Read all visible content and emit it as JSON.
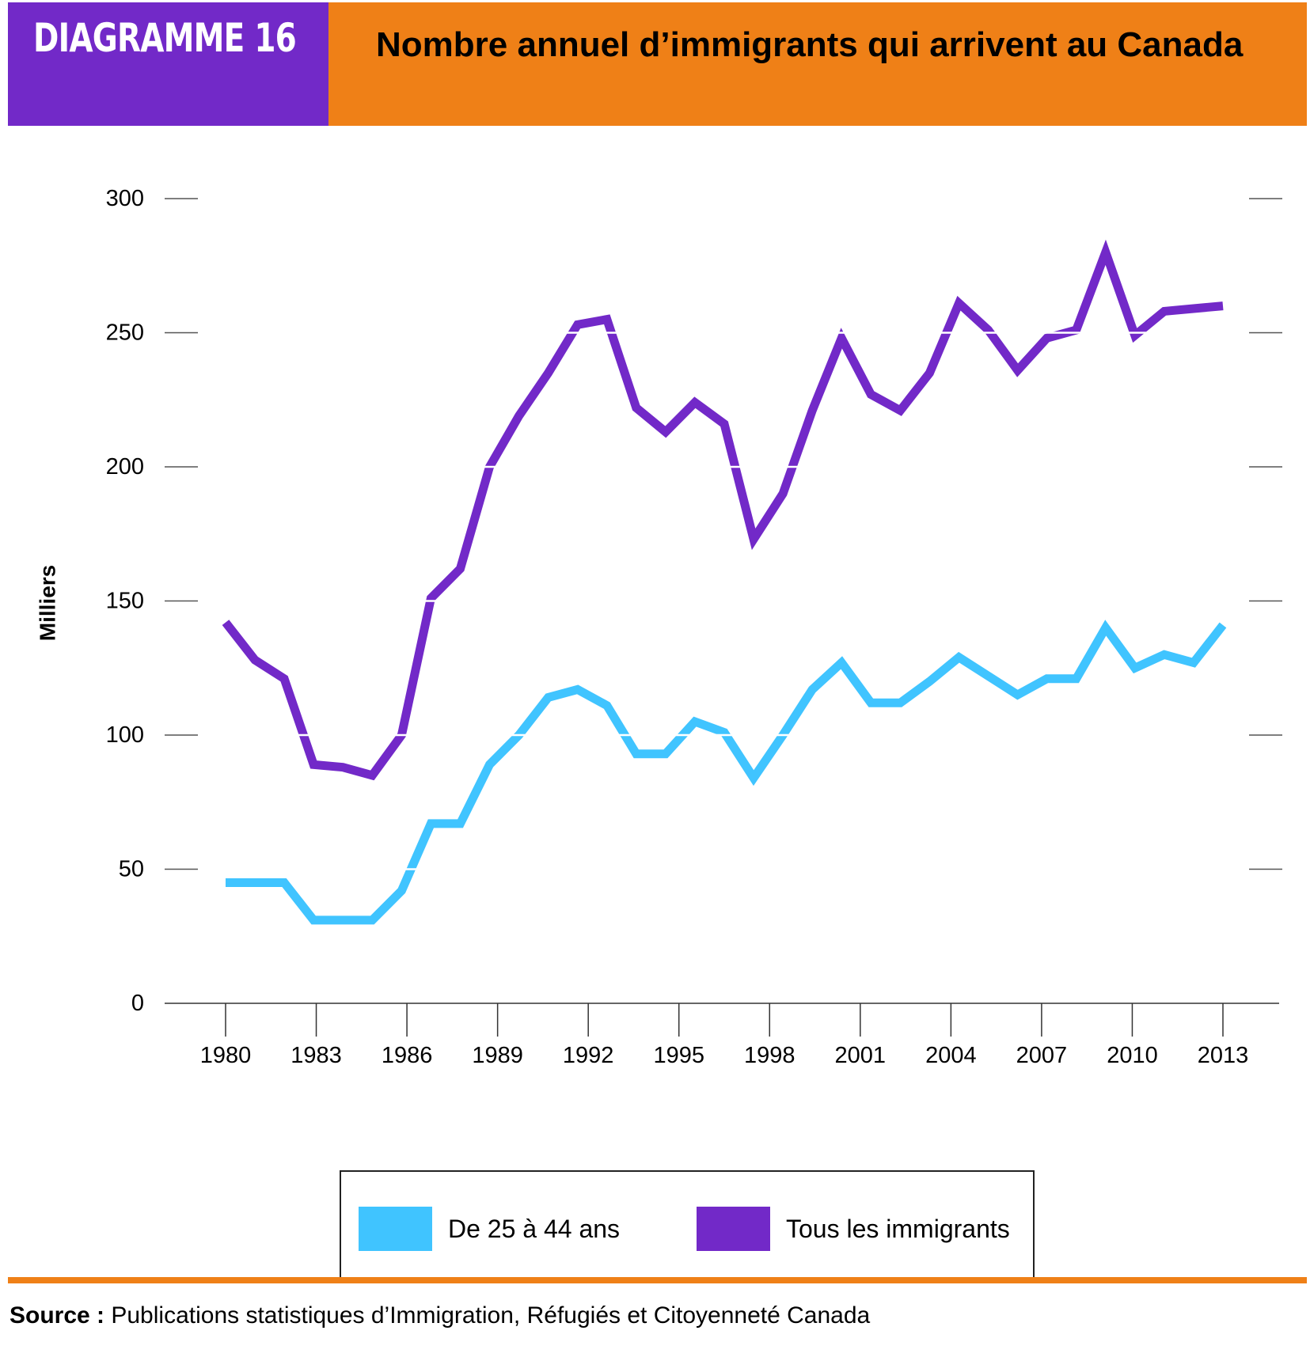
{
  "header": {
    "label": "DIAGRAMME 16",
    "title": "Nombre annuel d’immigrants qui arrivent au Canada",
    "label_bg": "#7229C8",
    "title_bg": "#EF8017"
  },
  "colors": {
    "series_25_44": "#40C4FF",
    "series_all": "#7229C8",
    "accent_rule": "#EF8017"
  },
  "chart_data": {
    "type": "line",
    "title": "Nombre annuel d’immigrants qui arrivent au Canada",
    "xlabel": "",
    "ylabel": "Milliers",
    "ylim": [
      0,
      300
    ],
    "yticks": [
      0,
      50,
      100,
      150,
      200,
      250,
      300
    ],
    "xtick_labels": [
      "1980",
      "1983",
      "1986",
      "1989",
      "1992",
      "1995",
      "1998",
      "2001",
      "2004",
      "2007",
      "2010",
      "2013"
    ],
    "grid": false,
    "legend_position": "bottom",
    "x": [
      1980,
      1981,
      1982,
      1983,
      1984,
      1985,
      1986,
      1987,
      1988,
      1989,
      1990,
      1991,
      1992,
      1993,
      1994,
      1995,
      1996,
      1997,
      1998,
      1999,
      2000,
      2001,
      2002,
      2003,
      2004,
      2005,
      2006,
      2007,
      2008,
      2009,
      2010,
      2011,
      2012,
      2013,
      2014
    ],
    "series": [
      {
        "name": "De 25 à 44 ans",
        "color": "#40C4FF",
        "values": [
          45,
          45,
          45,
          31,
          31,
          31,
          42,
          67,
          67,
          89,
          100,
          114,
          117,
          111,
          93,
          93,
          105,
          101,
          84,
          100,
          117,
          127,
          112,
          112,
          120,
          129,
          122,
          115,
          121,
          121,
          140,
          125,
          130,
          127,
          141
        ]
      },
      {
        "name": "Tous les immigrants",
        "color": "#7229C8",
        "values": [
          142,
          128,
          121,
          89,
          88,
          85,
          100,
          151,
          162,
          200,
          219,
          235,
          253,
          255,
          222,
          213,
          224,
          216,
          173,
          190,
          221,
          248,
          227,
          221,
          235,
          261,
          251,
          236,
          248,
          251,
          280,
          249,
          258,
          259,
          260
        ]
      }
    ]
  },
  "legend": {
    "items": [
      {
        "label": "De 25 à 44 ans",
        "color": "#40C4FF"
      },
      {
        "label": "Tous les immigrants",
        "color": "#7229C8"
      }
    ]
  },
  "footer": {
    "source_label": "Source :",
    "source_text": " Publications statistiques d’Immigration, Réfugiés et Citoyenneté Canada"
  }
}
